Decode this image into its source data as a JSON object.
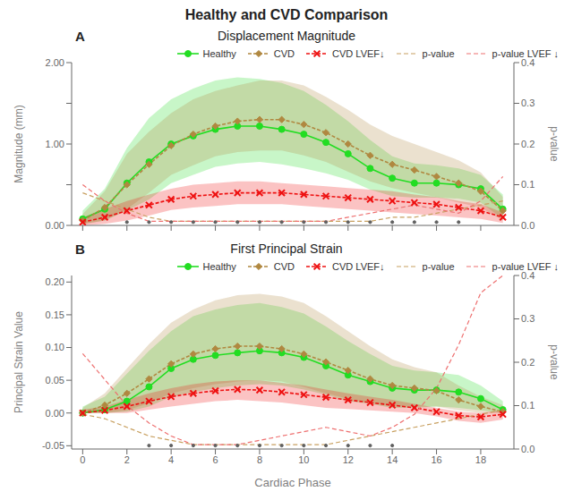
{
  "title": "Healthy and CVD Comparison",
  "chart_data": [
    {
      "type": "line",
      "title": "Displacement Magnitude",
      "annotations": [
        "A"
      ],
      "ylabel": "Magnitude (mm)",
      "y2label": "p-value",
      "x": [
        0,
        1,
        2,
        3,
        4,
        5,
        6,
        7,
        8,
        9,
        10,
        11,
        12,
        13,
        14,
        15,
        16,
        17,
        18,
        19
      ],
      "xlim": [
        -0.5,
        19.5
      ],
      "xticks": [
        0,
        2,
        4,
        6,
        8,
        10,
        12,
        14,
        16,
        18
      ],
      "tick_labels": "y",
      "ylim": [
        0.0,
        2.0
      ],
      "yticks": [
        {
          "value": 0.0,
          "label": "0.00"
        },
        {
          "value": 0.5,
          "label": null
        },
        {
          "value": 1.0,
          "label": "1.00"
        },
        {
          "value": 1.5,
          "label": null
        },
        {
          "value": 2.0,
          "label": "2.00"
        }
      ],
      "y2lim": [
        0.0,
        0.4
      ],
      "y2ticks": [
        {
          "value": 0.0,
          "label": "0.0"
        },
        {
          "value": 0.1,
          "label": "0.1"
        },
        {
          "value": 0.2,
          "label": "0.2"
        },
        {
          "value": 0.3,
          "label": "0.3"
        },
        {
          "value": 0.4,
          "label": "0.4"
        }
      ],
      "legend": "upper right",
      "series": [
        {
          "name": "Healthy",
          "color": "#22dd22",
          "marker": "circle",
          "line_style": "solid",
          "values": [
            0.08,
            0.2,
            0.52,
            0.78,
            1.0,
            1.1,
            1.18,
            1.22,
            1.22,
            1.18,
            1.12,
            1.02,
            0.88,
            0.7,
            0.58,
            0.52,
            0.52,
            0.5,
            0.45,
            0.2
          ],
          "upper": [
            0.18,
            0.45,
            0.95,
            1.32,
            1.55,
            1.68,
            1.78,
            1.82,
            1.8,
            1.75,
            1.65,
            1.48,
            1.28,
            1.05,
            0.85,
            0.76,
            0.74,
            0.7,
            0.62,
            0.38
          ],
          "lower": [
            0.02,
            0.06,
            0.18,
            0.32,
            0.52,
            0.62,
            0.72,
            0.76,
            0.78,
            0.75,
            0.7,
            0.64,
            0.56,
            0.44,
            0.36,
            0.34,
            0.34,
            0.33,
            0.28,
            0.08
          ]
        },
        {
          "name": "CVD",
          "color": "#b08840",
          "marker": "diamond",
          "line_style": "dashed",
          "values": [
            0.06,
            0.22,
            0.5,
            0.75,
            0.98,
            1.12,
            1.22,
            1.28,
            1.3,
            1.3,
            1.24,
            1.14,
            1.0,
            0.86,
            0.75,
            0.68,
            0.6,
            0.52,
            0.42,
            0.18
          ],
          "upper": [
            0.14,
            0.42,
            0.88,
            1.15,
            1.38,
            1.55,
            1.65,
            1.72,
            1.78,
            1.78,
            1.72,
            1.58,
            1.42,
            1.24,
            1.1,
            1.0,
            0.9,
            0.8,
            0.65,
            0.35
          ],
          "lower": [
            0.01,
            0.06,
            0.2,
            0.4,
            0.62,
            0.74,
            0.85,
            0.9,
            0.92,
            0.92,
            0.86,
            0.78,
            0.66,
            0.54,
            0.46,
            0.4,
            0.35,
            0.28,
            0.22,
            0.06
          ]
        },
        {
          "name": "CVD LVEF↓",
          "color": "#ee1111",
          "marker": "x",
          "line_style": "dashed",
          "values": [
            0.04,
            0.1,
            0.18,
            0.25,
            0.32,
            0.36,
            0.38,
            0.4,
            0.4,
            0.4,
            0.38,
            0.36,
            0.34,
            0.32,
            0.3,
            0.28,
            0.26,
            0.22,
            0.18,
            0.1
          ],
          "upper": [
            0.1,
            0.2,
            0.3,
            0.38,
            0.45,
            0.5,
            0.52,
            0.54,
            0.54,
            0.52,
            0.5,
            0.48,
            0.46,
            0.44,
            0.42,
            0.38,
            0.35,
            0.3,
            0.26,
            0.16
          ],
          "lower": [
            0.0,
            0.02,
            0.06,
            0.12,
            0.19,
            0.22,
            0.24,
            0.26,
            0.26,
            0.26,
            0.24,
            0.22,
            0.2,
            0.18,
            0.16,
            0.14,
            0.12,
            0.1,
            0.08,
            0.03
          ]
        },
        {
          "name": "p-value",
          "color": "#c8a060",
          "axis": "y2",
          "line_style": "dashed",
          "values": [
            0.08,
            0.06,
            0.04,
            0.02,
            0.01,
            0.01,
            0.01,
            0.01,
            0.01,
            0.01,
            0.01,
            0.01,
            0.01,
            0.01,
            0.02,
            0.02,
            0.03,
            0.04,
            0.05,
            0.06
          ]
        },
        {
          "name": "p-value LVEF ↓",
          "color": "#ee7070",
          "axis": "y2",
          "line_style": "dashed",
          "values": [
            0.1,
            0.06,
            0.03,
            0.01,
            0.01,
            0.01,
            0.01,
            0.01,
            0.01,
            0.01,
            0.01,
            0.01,
            0.02,
            0.03,
            0.04,
            0.05,
            0.04,
            0.03,
            0.06,
            0.12
          ]
        }
      ],
      "significance": {
        "color": "#606060",
        "x": [
          2,
          3,
          4,
          5,
          6,
          7,
          8,
          9,
          10,
          11,
          12,
          13,
          14,
          15,
          16,
          17
        ]
      }
    },
    {
      "type": "line",
      "title": "First Principal Strain",
      "annotations": [
        "B"
      ],
      "xlabel": "Cardiac Phase",
      "ylabel": "Principal Strain Value",
      "y2label": "p-value",
      "x": [
        0,
        1,
        2,
        3,
        4,
        5,
        6,
        7,
        8,
        9,
        10,
        11,
        12,
        13,
        14,
        15,
        16,
        17,
        18,
        19
      ],
      "xlim": [
        -0.5,
        19.5
      ],
      "xticks": [
        0,
        2,
        4,
        6,
        8,
        10,
        12,
        14,
        16,
        18
      ],
      "ylim": [
        -0.055,
        0.21
      ],
      "yticks": [
        {
          "value": -0.05,
          "label": "-0.05"
        },
        {
          "value": 0.0,
          "label": "0.00"
        },
        {
          "value": 0.05,
          "label": "0.05"
        },
        {
          "value": 0.1,
          "label": "0.10"
        },
        {
          "value": 0.15,
          "label": "0.15"
        },
        {
          "value": 0.2,
          "label": "0.20"
        }
      ],
      "y2lim": [
        0.0,
        0.4
      ],
      "y2ticks": [
        {
          "value": 0.0,
          "label": "0.0"
        },
        {
          "value": 0.1,
          "label": "0.1"
        },
        {
          "value": 0.2,
          "label": "0.2"
        },
        {
          "value": 0.3,
          "label": "0.3"
        },
        {
          "value": 0.4,
          "label": "0.4"
        }
      ],
      "legend": "upper right",
      "series": [
        {
          "name": "Healthy",
          "color": "#22dd22",
          "marker": "circle",
          "line_style": "solid",
          "values": [
            0.0,
            0.005,
            0.018,
            0.04,
            0.068,
            0.082,
            0.088,
            0.092,
            0.095,
            0.092,
            0.085,
            0.072,
            0.058,
            0.048,
            0.038,
            0.035,
            0.035,
            0.032,
            0.022,
            0.005
          ],
          "upper": [
            0.01,
            0.025,
            0.06,
            0.095,
            0.125,
            0.148,
            0.158,
            0.165,
            0.168,
            0.162,
            0.152,
            0.132,
            0.11,
            0.09,
            0.072,
            0.065,
            0.062,
            0.058,
            0.042,
            0.018
          ],
          "lower": [
            0.0,
            0.0,
            0.002,
            0.01,
            0.025,
            0.032,
            0.038,
            0.042,
            0.044,
            0.042,
            0.036,
            0.028,
            0.018,
            0.014,
            0.008,
            0.008,
            0.01,
            0.008,
            0.004,
            0.0
          ]
        },
        {
          "name": "CVD",
          "color": "#b08840",
          "marker": "diamond",
          "line_style": "dashed",
          "values": [
            0.0,
            0.012,
            0.03,
            0.052,
            0.075,
            0.09,
            0.098,
            0.102,
            0.102,
            0.098,
            0.09,
            0.078,
            0.065,
            0.052,
            0.042,
            0.038,
            0.034,
            0.02,
            0.01,
            0.002
          ],
          "upper": [
            0.008,
            0.03,
            0.068,
            0.105,
            0.138,
            0.158,
            0.172,
            0.18,
            0.182,
            0.178,
            0.168,
            0.148,
            0.125,
            0.102,
            0.082,
            0.07,
            0.062,
            0.042,
            0.025,
            0.012
          ],
          "lower": [
            0.0,
            0.0,
            0.004,
            0.015,
            0.03,
            0.038,
            0.044,
            0.048,
            0.05,
            0.048,
            0.04,
            0.03,
            0.022,
            0.015,
            0.01,
            0.01,
            0.01,
            0.004,
            0.0,
            0.0
          ]
        },
        {
          "name": "CVD LVEF↓",
          "color": "#ee1111",
          "marker": "x",
          "line_style": "dashed",
          "values": [
            0.0,
            0.004,
            0.01,
            0.018,
            0.025,
            0.03,
            0.034,
            0.036,
            0.035,
            0.032,
            0.028,
            0.024,
            0.02,
            0.016,
            0.012,
            0.008,
            0.002,
            -0.004,
            -0.006,
            -0.002
          ],
          "upper": [
            0.005,
            0.01,
            0.02,
            0.03,
            0.038,
            0.044,
            0.048,
            0.05,
            0.05,
            0.046,
            0.042,
            0.036,
            0.03,
            0.025,
            0.02,
            0.014,
            0.008,
            0.002,
            0.0,
            0.005
          ],
          "lower": [
            0.0,
            0.0,
            0.0,
            0.005,
            0.01,
            0.014,
            0.018,
            0.02,
            0.018,
            0.016,
            0.012,
            0.008,
            0.006,
            0.004,
            0.002,
            0.0,
            -0.005,
            -0.012,
            -0.015,
            -0.01
          ]
        },
        {
          "name": "p-value",
          "color": "#c8a060",
          "axis": "y2",
          "line_style": "dashed",
          "values": [
            0.08,
            0.07,
            0.05,
            0.03,
            0.02,
            0.01,
            0.01,
            0.01,
            0.01,
            0.01,
            0.01,
            0.01,
            0.02,
            0.03,
            0.04,
            0.05,
            0.06,
            0.07,
            0.08,
            0.09
          ]
        },
        {
          "name": "p-value LVEF ↓",
          "color": "#ee7070",
          "axis": "y2",
          "line_style": "dashed",
          "values": [
            0.22,
            0.16,
            0.1,
            0.06,
            0.03,
            0.01,
            0.01,
            0.01,
            0.02,
            0.03,
            0.04,
            0.05,
            0.04,
            0.03,
            0.05,
            0.08,
            0.14,
            0.24,
            0.36,
            0.4
          ]
        }
      ],
      "significance": {
        "color": "#606060",
        "x": [
          3,
          4,
          5,
          6,
          7,
          8,
          9,
          10,
          11,
          12,
          13,
          14
        ]
      }
    }
  ]
}
